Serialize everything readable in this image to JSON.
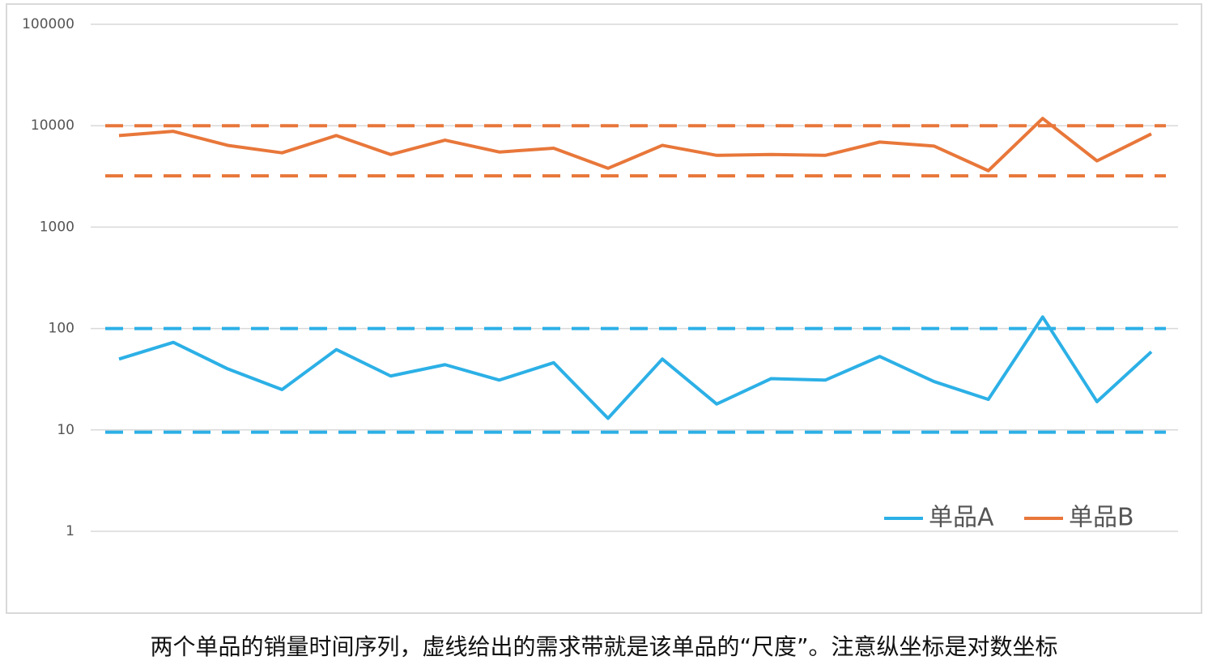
{
  "chart_data": {
    "type": "line",
    "log_scale": true,
    "grid": true,
    "legend": "lower right",
    "caption": "两个单品的销量时间序列，虚线给出的需求带就是该单品的“尺度”。注意纵坐标是对数坐标",
    "categories": [
      null,
      null,
      null,
      null,
      null,
      null,
      null,
      null,
      null,
      null,
      null,
      null,
      null,
      null,
      null,
      null,
      null,
      null,
      null,
      null
    ],
    "ylim": [
      1,
      100000
    ],
    "yticks": [
      1,
      10,
      100,
      1000,
      10000,
      100000
    ],
    "series": [
      {
        "name": "单品A",
        "color": "#2cb0e6",
        "values": [
          50,
          73,
          40,
          25,
          62,
          34,
          44,
          31,
          46,
          13,
          50,
          18,
          32,
          31,
          53,
          30,
          20,
          130,
          19,
          59
        ]
      },
      {
        "name": "单品B",
        "color": "#e8773a",
        "values": [
          8000,
          8800,
          6400,
          5400,
          8000,
          5200,
          7200,
          5500,
          6000,
          3800,
          6400,
          5100,
          5200,
          5100,
          6900,
          6300,
          3600,
          11800,
          4500,
          8300
        ]
      }
    ],
    "reference_lines": [
      {
        "value": 10000,
        "color": "#e8773a"
      },
      {
        "value": 3200,
        "color": "#e8773a"
      },
      {
        "value": 100,
        "color": "#2cb0e6"
      },
      {
        "value": 9.5,
        "color": "#2cb0e6"
      }
    ]
  }
}
